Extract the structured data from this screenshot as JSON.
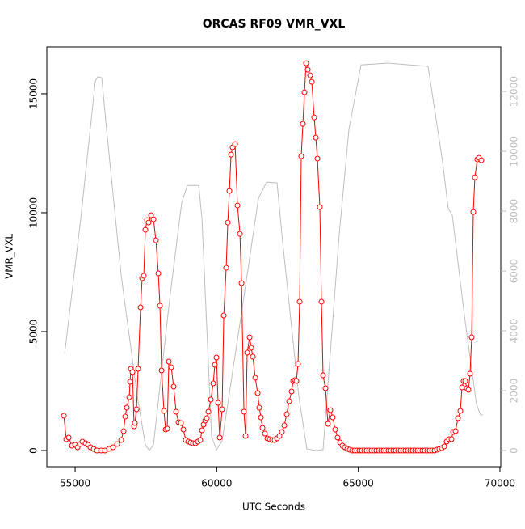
{
  "chart_data": {
    "type": "line",
    "title": "ORCAS RF09 VMR_VXL",
    "x_label": "UTC Seconds",
    "y_label": "VMR_VXL",
    "xlim": [
      54000,
      70030
    ],
    "xticks": [
      55000,
      60000,
      65000,
      70000
    ],
    "ylim": [
      -680,
      16970
    ],
    "yticks": [
      0,
      5000,
      10000,
      15000
    ],
    "y2lim": [
      -540,
      13490
    ],
    "y2ticks": [
      0,
      2000,
      4000,
      6000,
      8000,
      10000,
      12000
    ],
    "series": [
      {
        "color": "#ff0000",
        "markers": true,
        "x": [
          54601,
          54686,
          54772,
          54886,
          55000,
          55086,
          55171,
          55257,
          55371,
          55456,
          55542,
          55656,
          55770,
          55913,
          56055,
          56198,
          56340,
          56483,
          56626,
          56711,
          56768,
          56825,
          56911,
          56939,
          56968,
          57025,
          57082,
          57110,
          57167,
          57224,
          57310,
          57367,
          57424,
          57481,
          57538,
          57595,
          57681,
          57766,
          57852,
          57938,
          57995,
          58052,
          58137,
          58194,
          58251,
          58308,
          58394,
          58479,
          58565,
          58650,
          58736,
          58822,
          58907,
          58993,
          59078,
          59164,
          59250,
          59335,
          59421,
          59478,
          59535,
          59592,
          59649,
          59706,
          59792,
          59877,
          59934,
          59991,
          60048,
          60105,
          60191,
          60248,
          60334,
          60391,
          60448,
          60505,
          60562,
          60648,
          60733,
          60819,
          60876,
          60961,
          61018,
          61075,
          61161,
          61218,
          61275,
          61360,
          61446,
          61503,
          61560,
          61617,
          61703,
          61788,
          61874,
          61959,
          62045,
          62130,
          62216,
          62301,
          62387,
          62472,
          62558,
          62643,
          62700,
          62757,
          62814,
          62871,
          62928,
          62985,
          63042,
          63099,
          63156,
          63213,
          63299,
          63356,
          63441,
          63498,
          63555,
          63641,
          63698,
          63755,
          63840,
          63926,
          64012,
          64097,
          64183,
          64268,
          64354,
          64440,
          64525,
          64611,
          64696,
          64782,
          64868,
          64953,
          65039,
          65124,
          65210,
          65295,
          65381,
          65467,
          65552,
          65638,
          65723,
          65809,
          65895,
          65980,
          66066,
          66151,
          66237,
          66322,
          66408,
          66494,
          66579,
          66665,
          66750,
          66836,
          66922,
          67007,
          67093,
          67178,
          67264,
          67349,
          67435,
          67521,
          67606,
          67692,
          67777,
          67863,
          67948,
          68034,
          68119,
          68205,
          68291,
          68347,
          68433,
          68519,
          68604,
          68661,
          68718,
          68775,
          68832,
          68889,
          68946,
          69003,
          69060,
          69117,
          69202,
          69259,
          69345
        ],
        "values": [
          1462,
          476,
          544,
          204,
          238,
          136,
          272,
          374,
          306,
          238,
          136,
          68,
          0,
          0,
          0,
          68,
          136,
          272,
          442,
          816,
          1428,
          1802,
          2244,
          2890,
          3434,
          3298,
          1020,
          1156,
          1734,
          3434,
          6018,
          7242,
          7344,
          9282,
          9690,
          9588,
          9894,
          9724,
          8840,
          7446,
          6086,
          3366,
          1666,
          884,
          918,
          3740,
          3502,
          2686,
          1632,
          1190,
          1156,
          884,
          442,
          374,
          340,
          306,
          306,
          374,
          442,
          850,
          1088,
          1258,
          1360,
          1632,
          2142,
          2822,
          3604,
          3910,
          2006,
          544,
          1734,
          5678,
          7684,
          9588,
          10914,
          12444,
          12750,
          12886,
          10302,
          9112,
          7038,
          1632,
          612,
          4114,
          4760,
          4318,
          3944,
          3060,
          2414,
          1802,
          1394,
          952,
          714,
          510,
          476,
          442,
          442,
          510,
          612,
          782,
          1054,
          1530,
          2074,
          2482,
          2924,
          2958,
          2924,
          3638,
          6256,
          12376,
          13736,
          15062,
          16286,
          16014,
          15776,
          15504,
          14008,
          13158,
          12274,
          10234,
          6256,
          3162,
          2618,
          1122,
          1700,
          1394,
          884,
          544,
          340,
          204,
          136,
          68,
          34,
          0,
          0,
          0,
          0,
          0,
          0,
          0,
          0,
          0,
          0,
          0,
          0,
          0,
          0,
          0,
          0,
          0,
          0,
          0,
          0,
          0,
          0,
          0,
          0,
          0,
          0,
          0,
          0,
          0,
          0,
          0,
          0,
          0,
          0,
          0,
          34,
          68,
          102,
          170,
          374,
          476,
          476,
          782,
          816,
          1360,
          1666,
          2652,
          2924,
          2924,
          2618,
          2550,
          3230,
          4760,
          10030,
          11492,
          12240,
          12308,
          12206
        ]
      },
      {
        "color": "#bebebe",
        "axis": "y2",
        "markers": false,
        "x": [
          54630,
          55200,
          55713,
          55800,
          55940,
          56110,
          56626,
          57196,
          57481,
          57624,
          57766,
          58337,
          58765,
          58964,
          59364,
          59478,
          59820,
          59991,
          60191,
          60904,
          61474,
          61760,
          62130,
          62330,
          62900,
          63185,
          63527,
          63755,
          64325,
          64668,
          65096,
          66037,
          67463,
          67976,
          68176,
          68319,
          68747,
          69174,
          69316,
          69402
        ],
        "values": [
          3240,
          7760,
          12350,
          12490,
          12460,
          10730,
          5860,
          1810,
          190,
          0,
          190,
          5050,
          8300,
          8860,
          8860,
          7760,
          460,
          30,
          320,
          4780,
          8430,
          8970,
          8950,
          6950,
          1810,
          50,
          0,
          30,
          7220,
          10730,
          12890,
          12950,
          12840,
          9650,
          8080,
          7860,
          4510,
          1540,
          1190,
          1190
        ]
      }
    ]
  }
}
